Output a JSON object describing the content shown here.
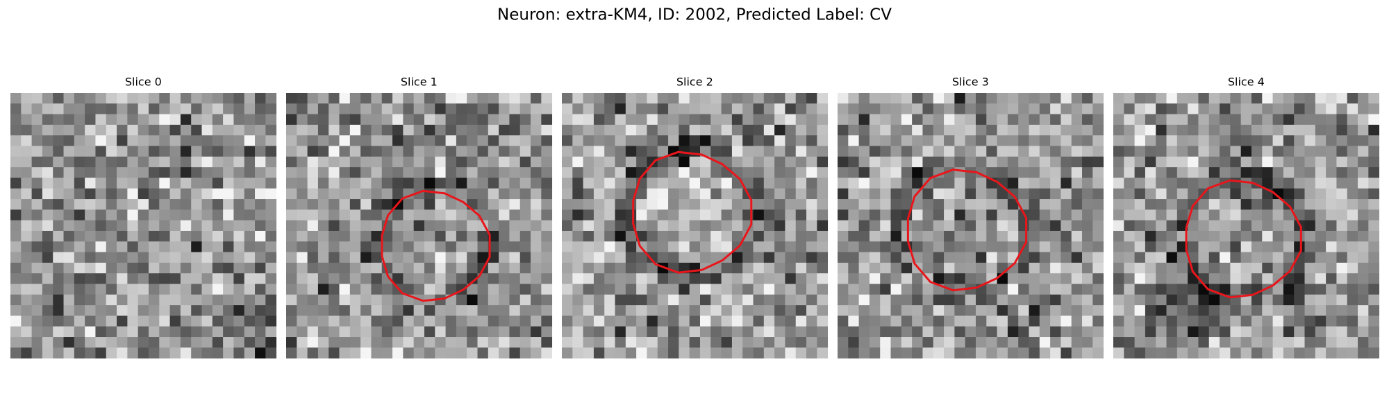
{
  "title": "Neuron: extra-KM4, ID: 2002, Predicted Label: CV",
  "panels": [
    {
      "title": "Slice 0"
    },
    {
      "title": "Slice 1"
    },
    {
      "title": "Slice 2"
    },
    {
      "title": "Slice 3"
    },
    {
      "title": "Slice 4"
    }
  ]
}
